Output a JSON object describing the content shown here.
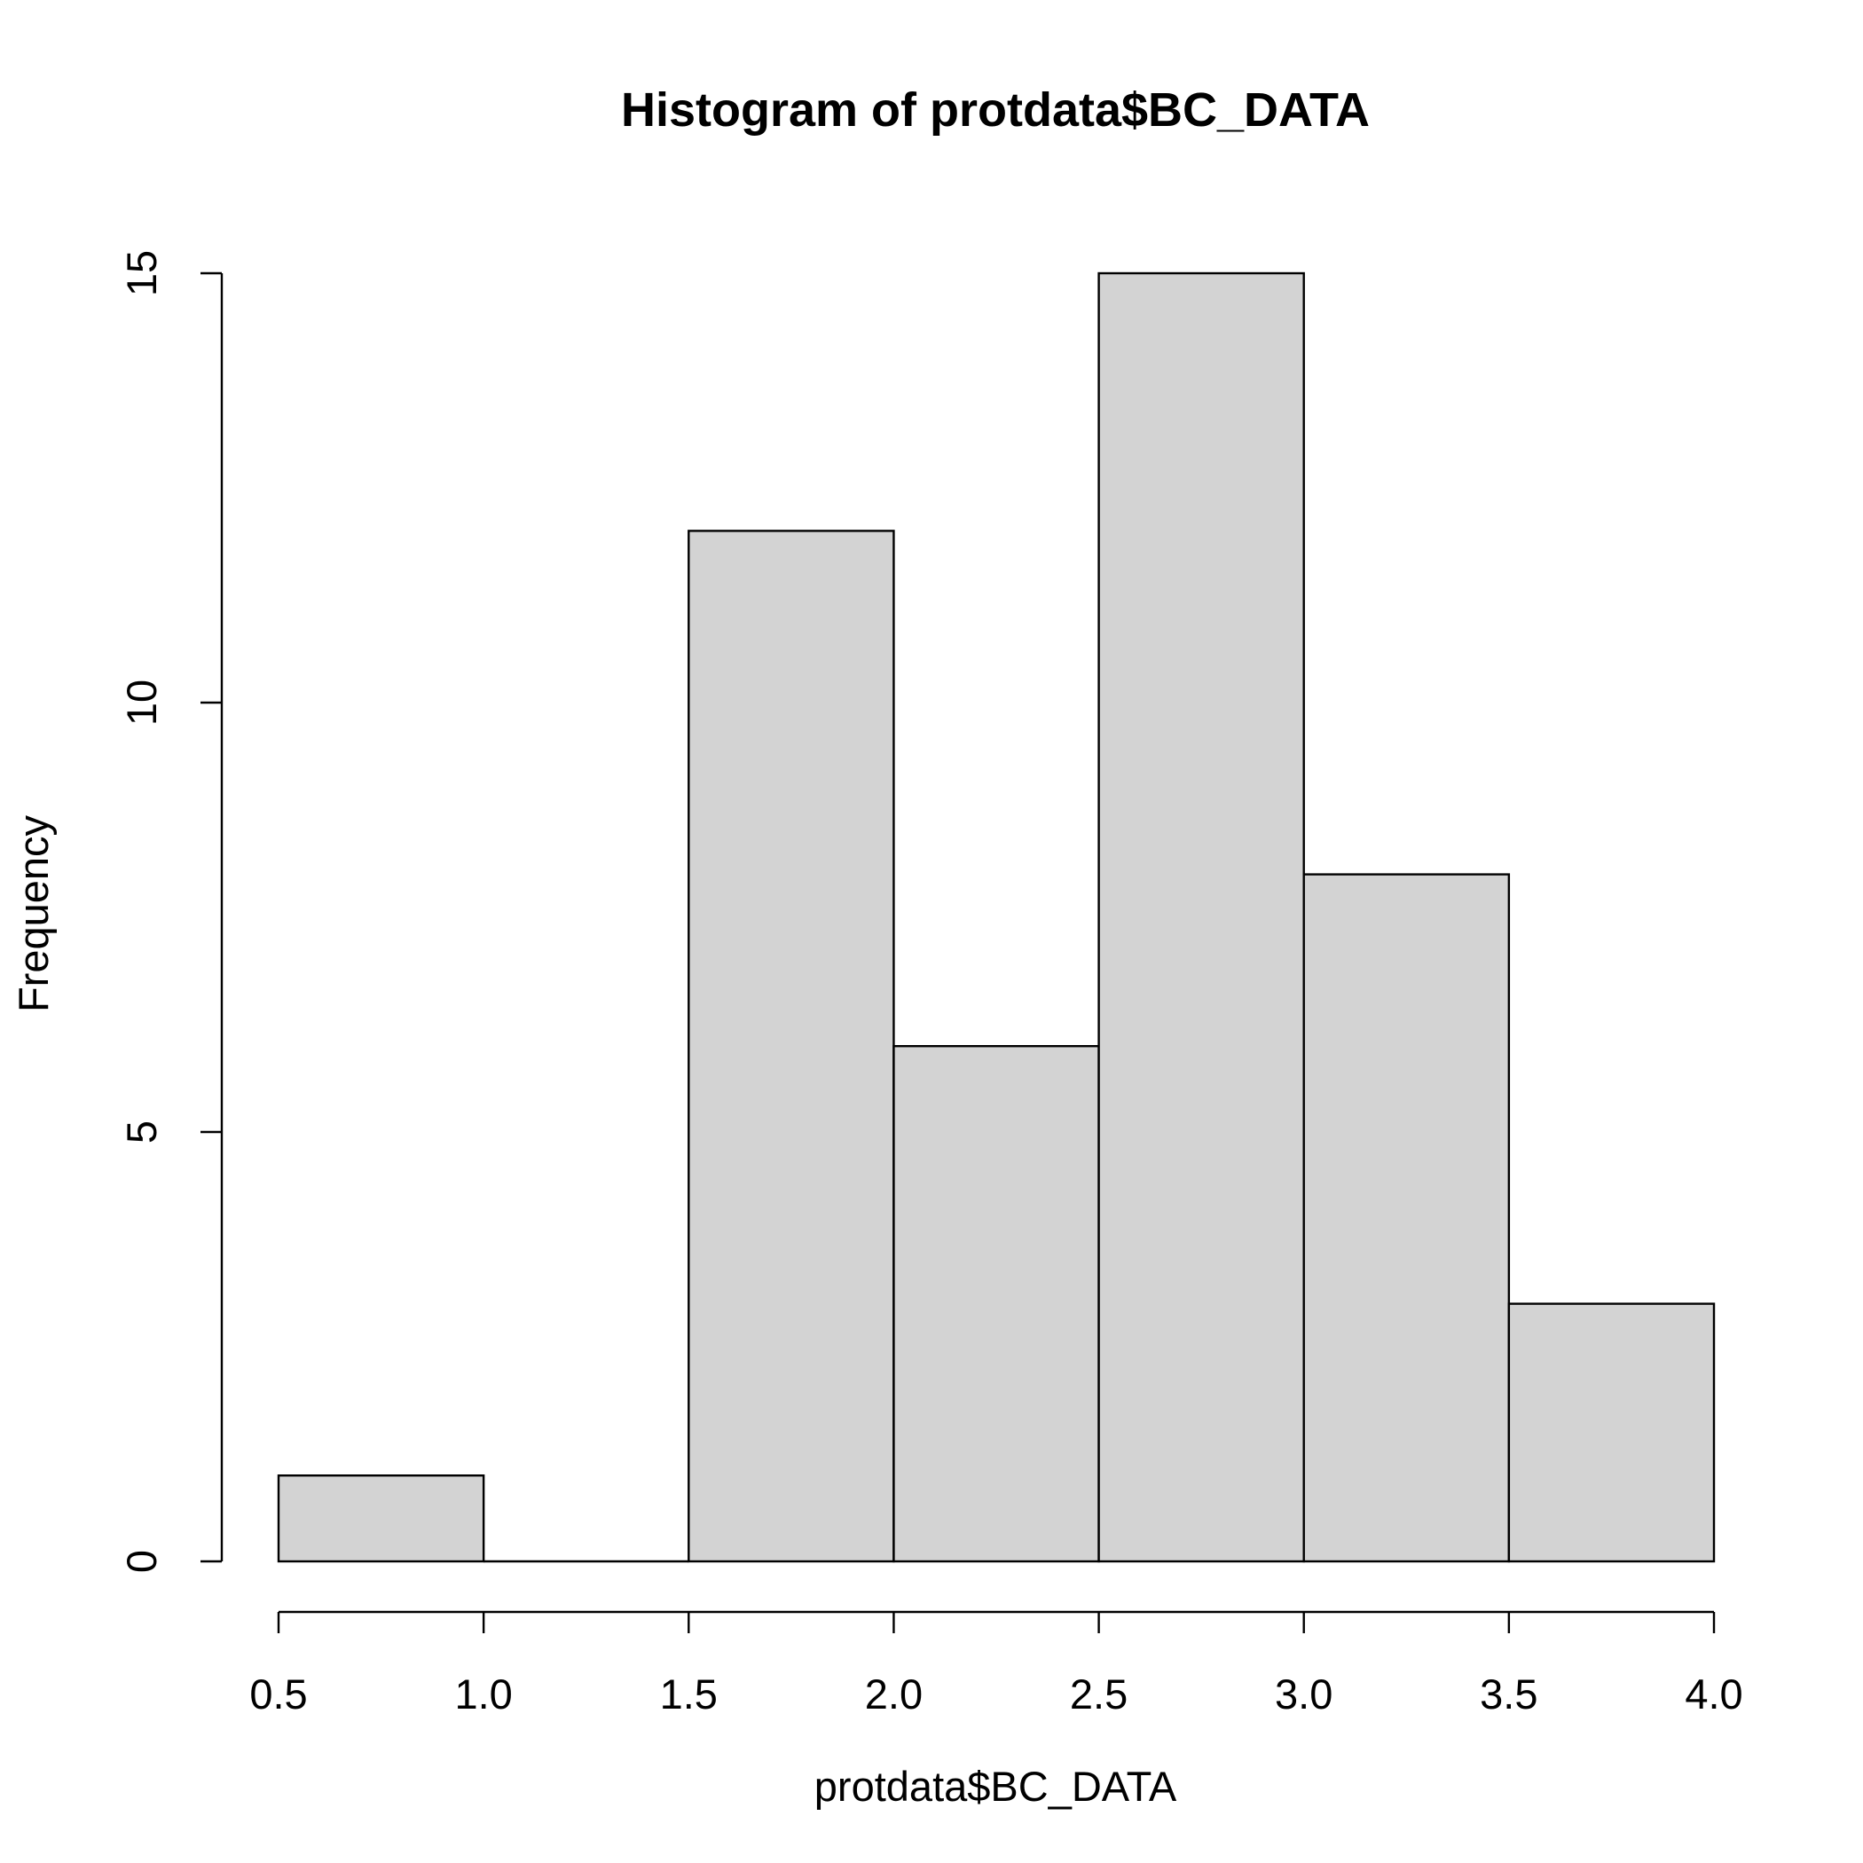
{
  "chart_data": {
    "type": "bar",
    "title": "Histogram of protdata$BC_DATA",
    "xlabel": "protdata$BC_DATA",
    "ylabel": "Frequency",
    "bins": [
      {
        "from": 0.5,
        "to": 1.0,
        "count": 1
      },
      {
        "from": 1.0,
        "to": 1.5,
        "count": 0
      },
      {
        "from": 1.5,
        "to": 2.0,
        "count": 12
      },
      {
        "from": 2.0,
        "to": 2.5,
        "count": 6
      },
      {
        "from": 2.5,
        "to": 3.0,
        "count": 15
      },
      {
        "from": 3.0,
        "to": 3.5,
        "count": 8
      },
      {
        "from": 3.5,
        "to": 4.0,
        "count": 3
      }
    ],
    "xlim": [
      0.5,
      4.0
    ],
    "ylim": [
      0,
      15
    ],
    "x_ticks": [
      "0.5",
      "1.0",
      "1.5",
      "2.0",
      "2.5",
      "3.0",
      "3.5",
      "4.0"
    ],
    "y_ticks": [
      "0",
      "5",
      "10",
      "15"
    ],
    "bar_color": "#d3d3d3",
    "grid": false,
    "legend": "none"
  }
}
